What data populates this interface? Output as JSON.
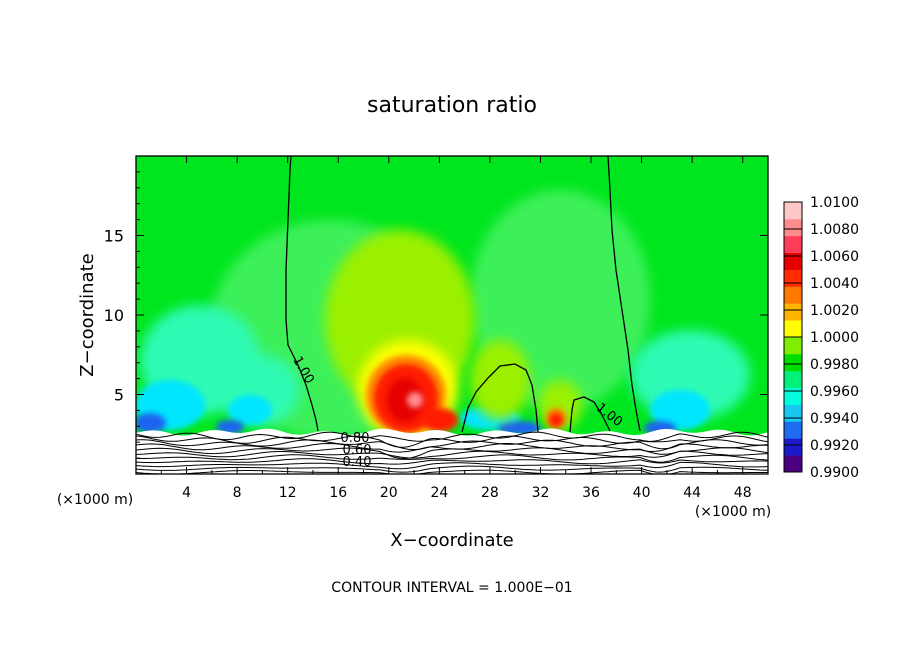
{
  "chart_data": {
    "type": "heatmap",
    "title": "saturation ratio",
    "xlabel": "X−coordinate",
    "ylabel": "Z−coordinate",
    "x_unit_left": "(×1000 m)",
    "x_unit_right": "(×1000 m)",
    "xlim": [
      0,
      50
    ],
    "ylim": [
      0,
      20
    ],
    "x_ticks": [
      4,
      8,
      12,
      16,
      20,
      24,
      28,
      32,
      36,
      40,
      44,
      48
    ],
    "y_ticks": [
      5,
      10,
      15
    ],
    "footer": "CONTOUR INTERVAL = 1.000E−01",
    "colorbar": {
      "labels": [
        "1.0100",
        "1.0080",
        "1.0060",
        "1.0040",
        "1.0020",
        "1.0000",
        "0.9980",
        "0.9960",
        "0.9940",
        "0.9920",
        "0.9900"
      ],
      "colors": [
        "#4b0082",
        "#1a1acc",
        "#1e6cf0",
        "#19c8f0",
        "#00ffdc",
        "#00f07a",
        "#00dd00",
        "#7fee00",
        "#ffff00",
        "#ffb400",
        "#ff7800",
        "#ff2d00",
        "#e60000",
        "#ff3c5a",
        "#ff8c8c",
        "#ffc8c8"
      ]
    },
    "contour_labels": [
      "1.00",
      "1.00",
      "0.80",
      "0.60",
      "0.40"
    ],
    "field_colors": {
      "background": "#00e61e",
      "light": "#3cf05a",
      "cyan": "#2dfab4",
      "deep_cyan": "#00e6ff",
      "blue": "#1e64f0",
      "yellow_green": "#9bf000",
      "yellow": "#ffff00",
      "orange": "#ff8c00",
      "red": "#ff1e00",
      "deep_red": "#e60000",
      "pink": "#ff8c8c",
      "terrain": "#ffffff",
      "line": "#000000"
    }
  }
}
